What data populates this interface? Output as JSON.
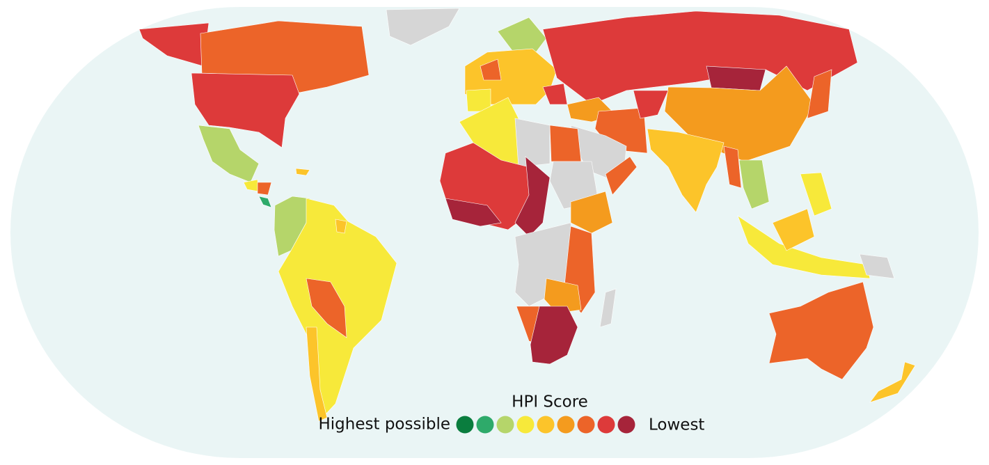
{
  "legend": {
    "title": "HPI Score",
    "high_label": "Highest possible",
    "low_label": "Lowest",
    "colors": [
      "#0a7d3e",
      "#2eaa6a",
      "#b5d56a",
      "#f7e93a",
      "#fcc42a",
      "#f49b1e",
      "#ec6429",
      "#dd3a3a",
      "#a6243a"
    ]
  }
}
